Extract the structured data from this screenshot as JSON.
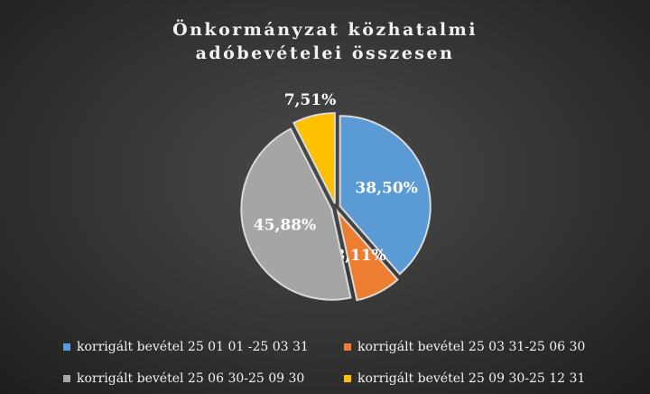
{
  "chart_data": {
    "type": "pie",
    "title": "Önkormányzat közhatalmi adóbevételei összesen",
    "categories": [
      "korrigált bevétel 25 01 01 -25 03 31",
      "korrigált bevétel 25 03 31-25 06 30",
      "korrigált bevétel 25 06 30-25 09 30",
      "korrigált bevétel 25 09 30-25 12 31"
    ],
    "values": [
      38.5,
      8.11,
      45.88,
      7.51
    ],
    "value_labels": [
      "38,50%",
      "8,11%",
      "45,88%",
      "7,51%"
    ],
    "colors": [
      "#5b9bd5",
      "#ed7d31",
      "#a5a5a5",
      "#ffc000"
    ],
    "legend": "bottom"
  }
}
